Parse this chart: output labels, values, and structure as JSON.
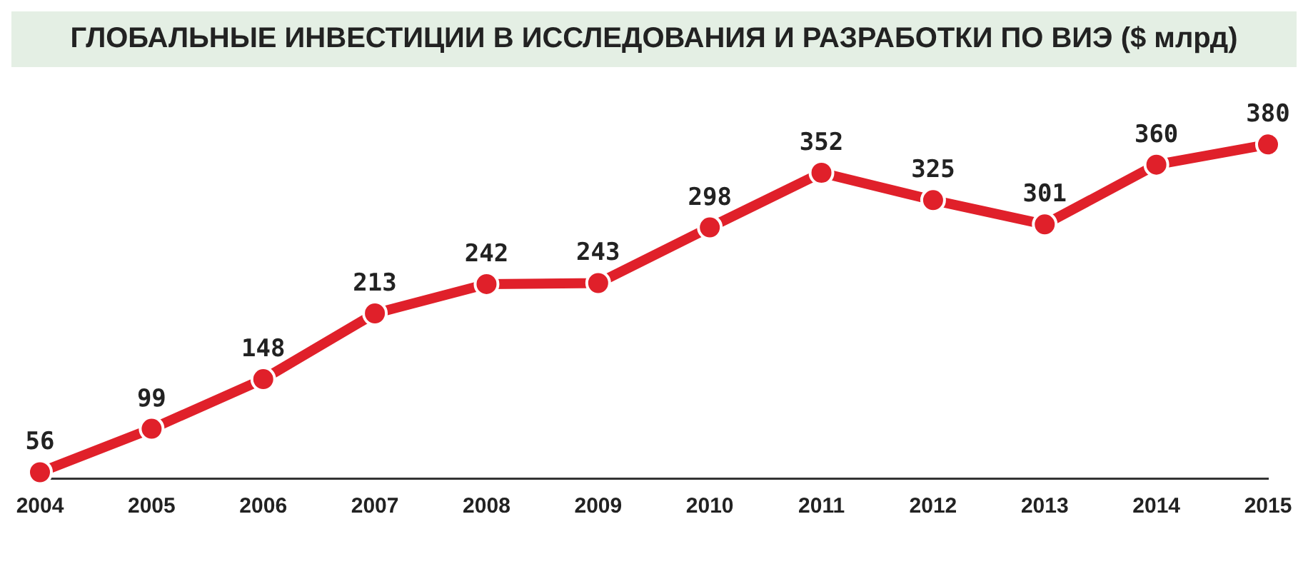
{
  "chart_data": {
    "type": "line",
    "title": "ГЛОБАЛЬНЫЕ ИНВЕСТИЦИИ В ИССЛЕДОВАНИЯ И РАЗРАБОТКИ ПО ВИЭ ($ млрд)",
    "categories": [
      "2004",
      "2005",
      "2006",
      "2007",
      "2008",
      "2009",
      "2010",
      "2011",
      "2012",
      "2013",
      "2014",
      "2015"
    ],
    "series": [
      {
        "color": "#e0202a",
        "values": [
          56,
          99,
          148,
          213,
          242,
          243,
          298,
          352,
          325,
          301,
          360,
          380
        ]
      }
    ],
    "data_labels": true,
    "marker": "circle",
    "grid": false,
    "legend": false
  }
}
